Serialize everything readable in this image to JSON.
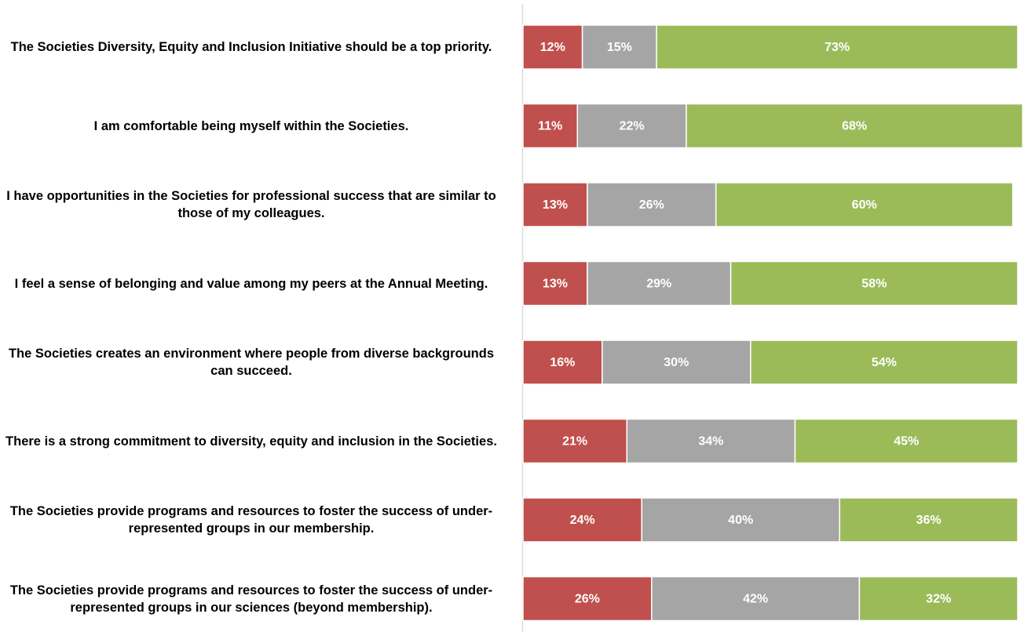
{
  "chart_data": {
    "type": "stacked-bar-horizontal",
    "categories": [
      "The Societies Diversity, Equity and Inclusion Initiative should be a top priority.",
      "I am comfortable being myself within the Societies.",
      "I have opportunities in the Societies for professional success that are similar to those of my colleagues.",
      "I feel a sense of belonging and value among my peers at the Annual Meeting.",
      "The Societies creates an environment where people from diverse backgrounds can succeed.",
      "There is a strong commitment to diversity, equity and inclusion in the Societies.",
      "The Societies provide programs and resources to foster the success of under-represented groups in our membership.",
      "The Societies provide programs and resources to foster the success of under-represented groups in our sciences (beyond membership)."
    ],
    "series": [
      {
        "color": "#c0504d",
        "values": [
          12,
          11,
          13,
          13,
          16,
          21,
          24,
          26
        ],
        "value_labels": [
          "12%",
          "11%",
          "13%",
          "13%",
          "16%",
          "21%",
          "24%",
          "26%"
        ]
      },
      {
        "color": "#a5a5a5",
        "values": [
          15,
          22,
          26,
          29,
          30,
          34,
          40,
          42
        ],
        "value_labels": [
          "15%",
          "22%",
          "26%",
          "29%",
          "30%",
          "34%",
          "40%",
          "42%"
        ]
      },
      {
        "color": "#9bbb59",
        "values": [
          73,
          68,
          60,
          58,
          54,
          45,
          36,
          32
        ],
        "value_labels": [
          "73%",
          "68%",
          "60%",
          "58%",
          "54%",
          "45%",
          "36%",
          "32%"
        ]
      }
    ],
    "xlim": [
      0,
      100
    ]
  }
}
